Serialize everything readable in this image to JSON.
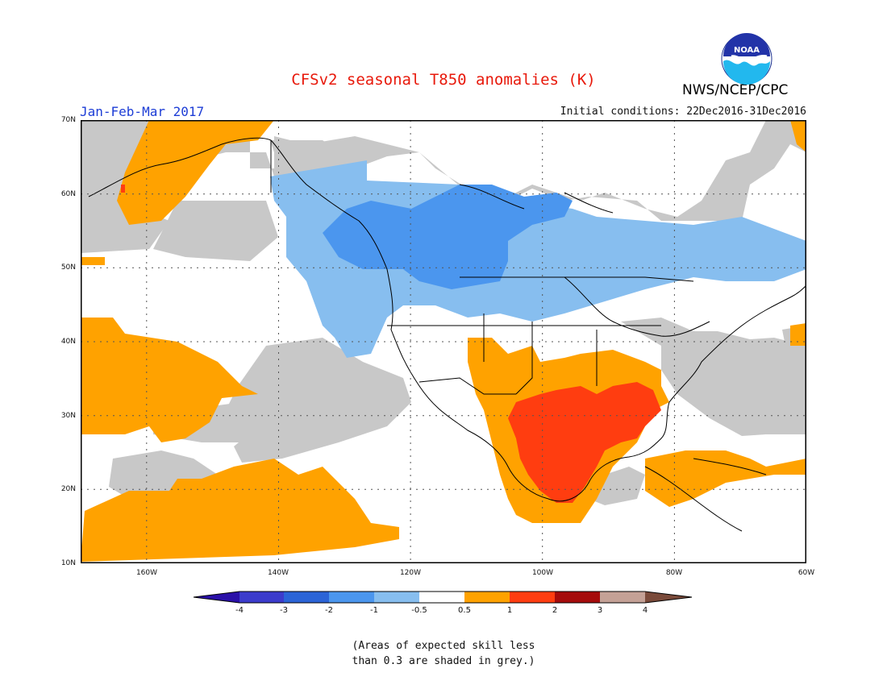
{
  "header": {
    "title": "CFSv2 seasonal T850 anomalies (K)",
    "season": "Jan-Feb-Mar 2017",
    "initial_conditions": "Initial conditions: 22Dec2016-31Dec2016",
    "agency": "NWS/NCEP/CPC",
    "logo_text": "NOAA"
  },
  "map": {
    "lat_labels": [
      "70N",
      "60N",
      "50N",
      "40N",
      "30N",
      "20N",
      "10N"
    ],
    "lon_labels": [
      "160W",
      "140W",
      "120W",
      "100W",
      "80W",
      "60W"
    ],
    "lat_range": [
      10,
      70
    ],
    "lon_range": [
      -170,
      -60
    ]
  },
  "colorbar": {
    "labels": [
      "-4",
      "-3",
      "-2",
      "-1",
      "-0.5",
      "0.5",
      "1",
      "2",
      "3",
      "4"
    ],
    "colors": [
      "#2a10a8",
      "#3c3ccc",
      "#2b64d7",
      "#4b96ee",
      "#87beef",
      "#ffffff",
      "#ffa200",
      "#ff3d10",
      "#a50b0b",
      "#c4a196",
      "#7a4a3a"
    ]
  },
  "note": {
    "line1": "(Areas of expected skill less",
    "line2": "than 0.3 are shaded in grey.)"
  }
}
